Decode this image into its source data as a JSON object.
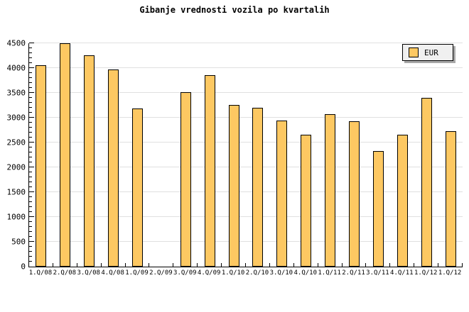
{
  "colors": {
    "bar_fill": "#FDC862",
    "bar_border": "#000000",
    "gridline": "#E0E0E0",
    "axis": "#000000",
    "legend_bg": "#F0F0F0",
    "legend_shadow": "#A8A8A8"
  },
  "chart_data": {
    "type": "bar",
    "title": "Gibanje vrednosti vozila po kvartalih",
    "categories": [
      "1.Q/08",
      "2.Q/08",
      "3.Q/08",
      "4.Q/08",
      "1.Q/09",
      "2.Q/09",
      "3.Q/09",
      "4.Q/09",
      "1.Q/10",
      "2.Q/10",
      "3.Q/10",
      "4.Q/10",
      "1.Q/11",
      "2.Q/11",
      "3.Q/11",
      "4.Q/11",
      "1.Q/12",
      "1.Q/12"
    ],
    "values": [
      4040,
      4480,
      4250,
      3960,
      3170,
      null,
      3500,
      3840,
      3250,
      3180,
      2930,
      2650,
      3060,
      2920,
      2310,
      2650,
      3390,
      2720
    ],
    "xlabel": "",
    "ylabel": "",
    "ylim": [
      0,
      4500
    ],
    "ytick_step": 500,
    "ytick_labels": [
      "0",
      "500",
      "1000",
      "1500",
      "2000",
      "2500",
      "3000",
      "3500",
      "4000",
      "4500"
    ],
    "y_minor_step": 100,
    "grid": "horizontal",
    "legend": [
      "EUR"
    ],
    "legend_position": "top-right"
  }
}
